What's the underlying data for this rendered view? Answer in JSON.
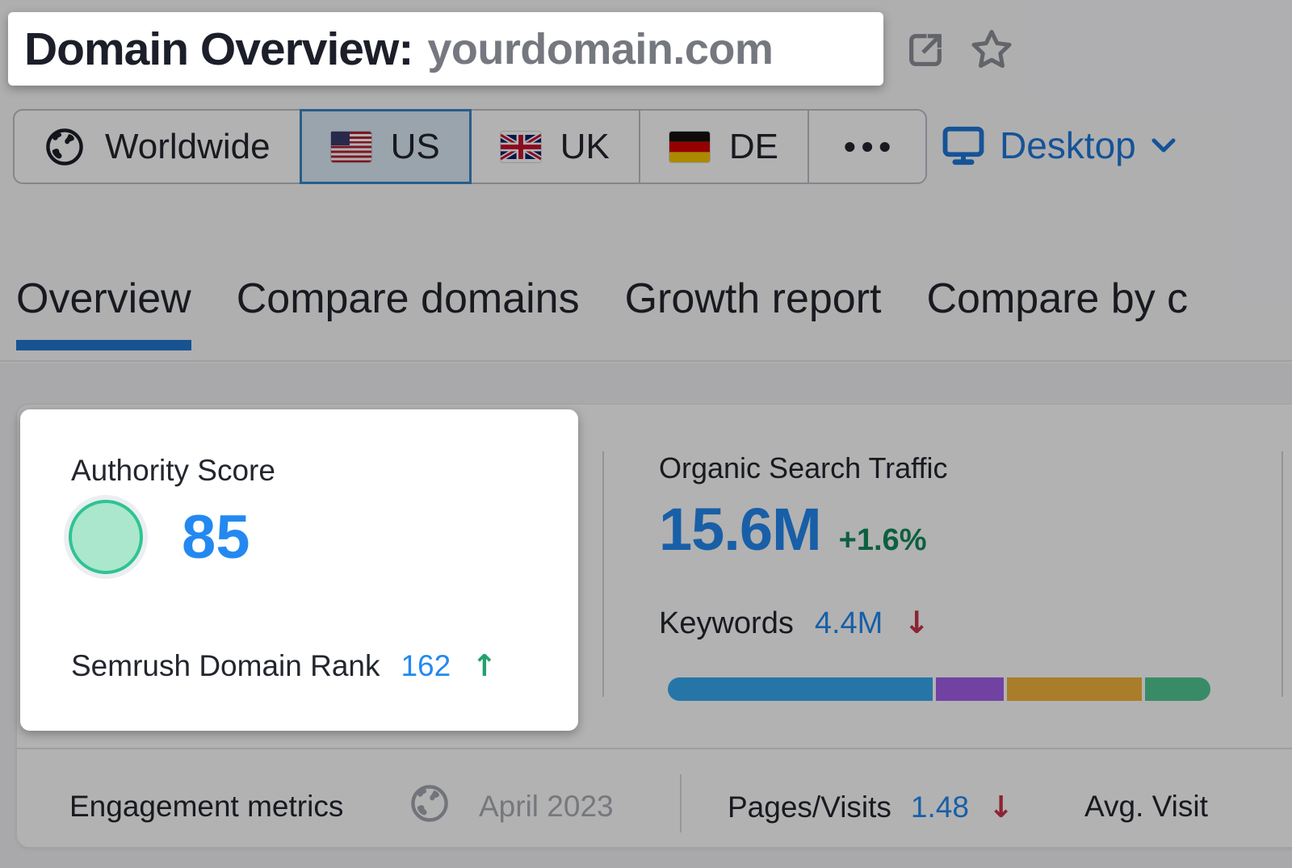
{
  "header": {
    "title": "Domain Overview:",
    "domain": "yourdomain.com"
  },
  "region_tabs": {
    "items": [
      {
        "label": "Worldwide",
        "icon": "globe-icon",
        "selected": false
      },
      {
        "label": "US",
        "icon": "us-flag-icon",
        "selected": true
      },
      {
        "label": "UK",
        "icon": "uk-flag-icon",
        "selected": false
      },
      {
        "label": "DE",
        "icon": "de-flag-icon",
        "selected": false
      },
      {
        "label": "•••",
        "icon": "more-dots",
        "selected": false
      }
    ]
  },
  "device_selector": {
    "label": "Desktop"
  },
  "nav_tabs": {
    "items": [
      {
        "label": "Overview",
        "active": true
      },
      {
        "label": "Compare domains",
        "active": false
      },
      {
        "label": "Growth report",
        "active": false
      },
      {
        "label": "Compare by c",
        "active": false
      }
    ]
  },
  "authority": {
    "title": "Authority Score",
    "score": "85",
    "rank_label": "Semrush Domain Rank",
    "rank_value": "162",
    "rank_trend_glyph": "↑"
  },
  "organic": {
    "title": "Organic Search Traffic",
    "value": "15.6M",
    "change": "+1.6%",
    "keywords_label": "Keywords",
    "keywords_value": "4.4M",
    "keywords_trend_glyph": "↓"
  },
  "traffic_bar": {
    "segments": [
      {
        "name": "blue",
        "color": "#35aaf0",
        "pct": 48.5
      },
      {
        "name": "purple",
        "color": "#a35fe8",
        "pct": 12.4
      },
      {
        "name": "gold",
        "color": "#f2b43c",
        "pct": 24.8
      },
      {
        "name": "green",
        "color": "#52c794",
        "pct": 12.0
      }
    ]
  },
  "engagement": {
    "title": "Engagement metrics",
    "period": "April 2023",
    "pages_visits_label": "Pages/Visits",
    "pages_visits_value": "1.48",
    "pages_visits_trend_glyph": "↓",
    "avg_visit_label": "Avg. Visit"
  },
  "colors": {
    "accent_blue": "#2389f0",
    "link_blue": "#1f78d8",
    "tab_underline": "#2077cf",
    "positive_green": "#15885c",
    "negative_red": "#cb3449",
    "score_circle_fill": "#abe7cd",
    "score_circle_ring": "#2ec492"
  }
}
